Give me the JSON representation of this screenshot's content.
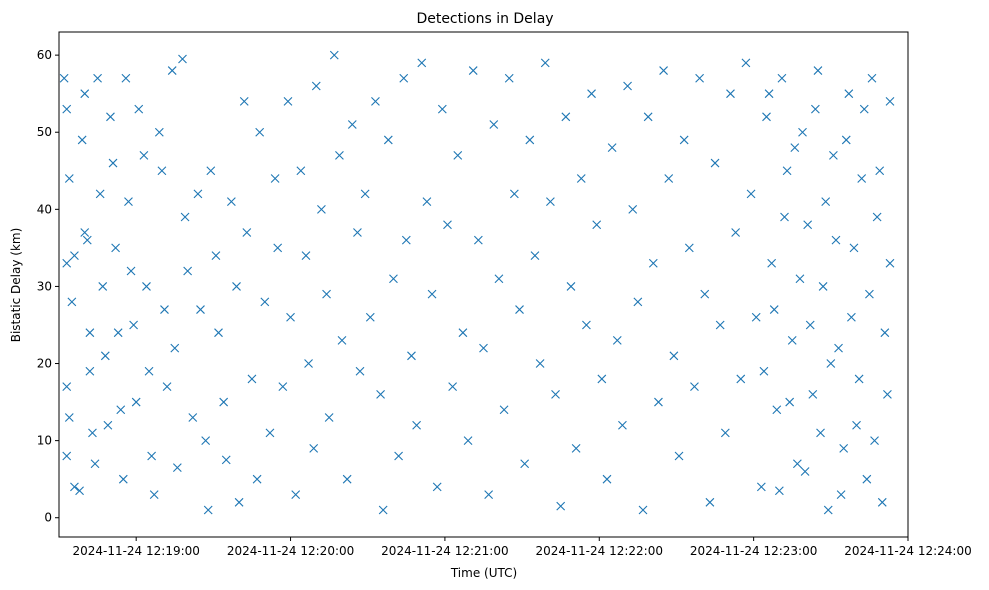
{
  "chart_data": {
    "type": "scatter",
    "title": "Detections in Delay",
    "xlabel": "Time (UTC)",
    "ylabel": "Bistatic Delay (km)",
    "marker": "x",
    "color": "#1f77b4",
    "grid": false,
    "x_tick_labels": [
      "2024-11-24 12:19:00",
      "2024-11-24 12:20:00",
      "2024-11-24 12:21:00",
      "2024-11-24 12:22:00",
      "2024-11-24 12:23:00",
      "2024-11-24 12:24:00"
    ],
    "y_ticks": [
      0,
      10,
      20,
      30,
      40,
      50,
      60
    ],
    "xlim": [
      "2024-11-24 12:18:30",
      "2024-11-24 12:24:00"
    ],
    "ylim": [
      -2.5,
      63
    ],
    "series": [
      {
        "points": [
          [
            "2024-11-24 12:18:32",
            57.0
          ],
          [
            "2024-11-24 12:18:33",
            53.0
          ],
          [
            "2024-11-24 12:18:34",
            44.0
          ],
          [
            "2024-11-24 12:18:36",
            34.0
          ],
          [
            "2024-11-24 12:18:33",
            33.0
          ],
          [
            "2024-11-24 12:18:35",
            28.0
          ],
          [
            "2024-11-24 12:18:33",
            17.0
          ],
          [
            "2024-11-24 12:18:34",
            13.0
          ],
          [
            "2024-11-24 12:18:33",
            8.0
          ],
          [
            "2024-11-24 12:18:36",
            4.0
          ],
          [
            "2024-11-24 12:18:38",
            3.5
          ],
          [
            "2024-11-24 12:18:39",
            49.0
          ],
          [
            "2024-11-24 12:18:40",
            55.0
          ],
          [
            "2024-11-24 12:18:40",
            37.0
          ],
          [
            "2024-11-24 12:18:41",
            36.0
          ],
          [
            "2024-11-24 12:18:42",
            24.0
          ],
          [
            "2024-11-24 12:18:42",
            19.0
          ],
          [
            "2024-11-24 12:18:43",
            11.0
          ],
          [
            "2024-11-24 12:18:44",
            7.0
          ],
          [
            "2024-11-24 12:18:45",
            57.0
          ],
          [
            "2024-11-24 12:18:46",
            42.0
          ],
          [
            "2024-11-24 12:18:47",
            30.0
          ],
          [
            "2024-11-24 12:18:48",
            21.0
          ],
          [
            "2024-11-24 12:18:49",
            12.0
          ],
          [
            "2024-11-24 12:18:50",
            52.0
          ],
          [
            "2024-11-24 12:18:51",
            46.0
          ],
          [
            "2024-11-24 12:18:52",
            35.0
          ],
          [
            "2024-11-24 12:18:53",
            24.0
          ],
          [
            "2024-11-24 12:18:54",
            14.0
          ],
          [
            "2024-11-24 12:18:55",
            5.0
          ],
          [
            "2024-11-24 12:18:56",
            57.0
          ],
          [
            "2024-11-24 12:18:57",
            41.0
          ],
          [
            "2024-11-24 12:18:58",
            32.0
          ],
          [
            "2024-11-24 12:18:59",
            25.0
          ],
          [
            "2024-11-24 12:19:00",
            15.0
          ],
          [
            "2024-11-24 12:19:01",
            53.0
          ],
          [
            "2024-11-24 12:19:03",
            47.0
          ],
          [
            "2024-11-24 12:19:04",
            30.0
          ],
          [
            "2024-11-24 12:19:05",
            19.0
          ],
          [
            "2024-11-24 12:19:06",
            8.0
          ],
          [
            "2024-11-24 12:19:07",
            3.0
          ],
          [
            "2024-11-24 12:19:09",
            50.0
          ],
          [
            "2024-11-24 12:19:10",
            45.0
          ],
          [
            "2024-11-24 12:19:11",
            27.0
          ],
          [
            "2024-11-24 12:19:12",
            17.0
          ],
          [
            "2024-11-24 12:19:14",
            58.0
          ],
          [
            "2024-11-24 12:19:15",
            22.0
          ],
          [
            "2024-11-24 12:19:16",
            6.5
          ],
          [
            "2024-11-24 12:19:18",
            59.5
          ],
          [
            "2024-11-24 12:19:19",
            39.0
          ],
          [
            "2024-11-24 12:19:20",
            32.0
          ],
          [
            "2024-11-24 12:19:22",
            13.0
          ],
          [
            "2024-11-24 12:19:24",
            42.0
          ],
          [
            "2024-11-24 12:19:25",
            27.0
          ],
          [
            "2024-11-24 12:19:27",
            10.0
          ],
          [
            "2024-11-24 12:19:28",
            1.0
          ],
          [
            "2024-11-24 12:19:29",
            45.0
          ],
          [
            "2024-11-24 12:19:31",
            34.0
          ],
          [
            "2024-11-24 12:19:32",
            24.0
          ],
          [
            "2024-11-24 12:19:34",
            15.0
          ],
          [
            "2024-11-24 12:19:35",
            7.5
          ],
          [
            "2024-11-24 12:19:37",
            41.0
          ],
          [
            "2024-11-24 12:19:39",
            30.0
          ],
          [
            "2024-11-24 12:19:40",
            2.0
          ],
          [
            "2024-11-24 12:19:42",
            54.0
          ],
          [
            "2024-11-24 12:19:43",
            37.0
          ],
          [
            "2024-11-24 12:19:45",
            18.0
          ],
          [
            "2024-11-24 12:19:47",
            5.0
          ],
          [
            "2024-11-24 12:19:48",
            50.0
          ],
          [
            "2024-11-24 12:19:50",
            28.0
          ],
          [
            "2024-11-24 12:19:52",
            11.0
          ],
          [
            "2024-11-24 12:19:54",
            44.0
          ],
          [
            "2024-11-24 12:19:55",
            35.0
          ],
          [
            "2024-11-24 12:19:57",
            17.0
          ],
          [
            "2024-11-24 12:19:59",
            54.0
          ],
          [
            "2024-11-24 12:20:00",
            26.0
          ],
          [
            "2024-11-24 12:20:02",
            3.0
          ],
          [
            "2024-11-24 12:20:04",
            45.0
          ],
          [
            "2024-11-24 12:20:06",
            34.0
          ],
          [
            "2024-11-24 12:20:07",
            20.0
          ],
          [
            "2024-11-24 12:20:09",
            9.0
          ],
          [
            "2024-11-24 12:20:10",
            56.0
          ],
          [
            "2024-11-24 12:20:12",
            40.0
          ],
          [
            "2024-11-24 12:20:14",
            29.0
          ],
          [
            "2024-11-24 12:20:15",
            13.0
          ],
          [
            "2024-11-24 12:20:17",
            60.0
          ],
          [
            "2024-11-24 12:20:19",
            47.0
          ],
          [
            "2024-11-24 12:20:20",
            23.0
          ],
          [
            "2024-11-24 12:20:22",
            5.0
          ],
          [
            "2024-11-24 12:20:24",
            51.0
          ],
          [
            "2024-11-24 12:20:26",
            37.0
          ],
          [
            "2024-11-24 12:20:27",
            19.0
          ],
          [
            "2024-11-24 12:20:29",
            42.0
          ],
          [
            "2024-11-24 12:20:31",
            26.0
          ],
          [
            "2024-11-24 12:20:33",
            54.0
          ],
          [
            "2024-11-24 12:20:35",
            16.0
          ],
          [
            "2024-11-24 12:20:36",
            1.0
          ],
          [
            "2024-11-24 12:20:38",
            49.0
          ],
          [
            "2024-11-24 12:20:40",
            31.0
          ],
          [
            "2024-11-24 12:20:42",
            8.0
          ],
          [
            "2024-11-24 12:20:44",
            57.0
          ],
          [
            "2024-11-24 12:20:45",
            36.0
          ],
          [
            "2024-11-24 12:20:47",
            21.0
          ],
          [
            "2024-11-24 12:20:49",
            12.0
          ],
          [
            "2024-11-24 12:20:51",
            59.0
          ],
          [
            "2024-11-24 12:20:53",
            41.0
          ],
          [
            "2024-11-24 12:20:55",
            29.0
          ],
          [
            "2024-11-24 12:20:57",
            4.0
          ],
          [
            "2024-11-24 12:20:59",
            53.0
          ],
          [
            "2024-11-24 12:21:01",
            38.0
          ],
          [
            "2024-11-24 12:21:03",
            17.0
          ],
          [
            "2024-11-24 12:21:05",
            47.0
          ],
          [
            "2024-11-24 12:21:07",
            24.0
          ],
          [
            "2024-11-24 12:21:09",
            10.0
          ],
          [
            "2024-11-24 12:21:11",
            58.0
          ],
          [
            "2024-11-24 12:21:13",
            36.0
          ],
          [
            "2024-11-24 12:21:15",
            22.0
          ],
          [
            "2024-11-24 12:21:17",
            3.0
          ],
          [
            "2024-11-24 12:21:19",
            51.0
          ],
          [
            "2024-11-24 12:21:21",
            31.0
          ],
          [
            "2024-11-24 12:21:23",
            14.0
          ],
          [
            "2024-11-24 12:21:25",
            57.0
          ],
          [
            "2024-11-24 12:21:27",
            42.0
          ],
          [
            "2024-11-24 12:21:29",
            27.0
          ],
          [
            "2024-11-24 12:21:31",
            7.0
          ],
          [
            "2024-11-24 12:21:33",
            49.0
          ],
          [
            "2024-11-24 12:21:35",
            34.0
          ],
          [
            "2024-11-24 12:21:37",
            20.0
          ],
          [
            "2024-11-24 12:21:39",
            59.0
          ],
          [
            "2024-11-24 12:21:41",
            41.0
          ],
          [
            "2024-11-24 12:21:43",
            16.0
          ],
          [
            "2024-11-24 12:21:45",
            1.5
          ],
          [
            "2024-11-24 12:21:47",
            52.0
          ],
          [
            "2024-11-24 12:21:49",
            30.0
          ],
          [
            "2024-11-24 12:21:51",
            9.0
          ],
          [
            "2024-11-24 12:21:53",
            44.0
          ],
          [
            "2024-11-24 12:21:55",
            25.0
          ],
          [
            "2024-11-24 12:21:57",
            55.0
          ],
          [
            "2024-11-24 12:21:59",
            38.0
          ],
          [
            "2024-11-24 12:22:01",
            18.0
          ],
          [
            "2024-11-24 12:22:03",
            5.0
          ],
          [
            "2024-11-24 12:22:05",
            48.0
          ],
          [
            "2024-11-24 12:22:07",
            23.0
          ],
          [
            "2024-11-24 12:22:09",
            12.0
          ],
          [
            "2024-11-24 12:22:11",
            56.0
          ],
          [
            "2024-11-24 12:22:13",
            40.0
          ],
          [
            "2024-11-24 12:22:15",
            28.0
          ],
          [
            "2024-11-24 12:22:17",
            1.0
          ],
          [
            "2024-11-24 12:22:19",
            52.0
          ],
          [
            "2024-11-24 12:22:21",
            33.0
          ],
          [
            "2024-11-24 12:22:23",
            15.0
          ],
          [
            "2024-11-24 12:22:25",
            58.0
          ],
          [
            "2024-11-24 12:22:27",
            44.0
          ],
          [
            "2024-11-24 12:22:29",
            21.0
          ],
          [
            "2024-11-24 12:22:31",
            8.0
          ],
          [
            "2024-11-24 12:22:33",
            49.0
          ],
          [
            "2024-11-24 12:22:35",
            35.0
          ],
          [
            "2024-11-24 12:22:37",
            17.0
          ],
          [
            "2024-11-24 12:22:39",
            57.0
          ],
          [
            "2024-11-24 12:22:41",
            29.0
          ],
          [
            "2024-11-24 12:22:43",
            2.0
          ],
          [
            "2024-11-24 12:22:45",
            46.0
          ],
          [
            "2024-11-24 12:22:47",
            25.0
          ],
          [
            "2024-11-24 12:22:49",
            11.0
          ],
          [
            "2024-11-24 12:22:51",
            55.0
          ],
          [
            "2024-11-24 12:22:53",
            37.0
          ],
          [
            "2024-11-24 12:22:55",
            18.0
          ],
          [
            "2024-11-24 12:22:57",
            59.0
          ],
          [
            "2024-11-24 12:22:59",
            42.0
          ],
          [
            "2024-11-24 12:23:01",
            26.0
          ],
          [
            "2024-11-24 12:23:03",
            4.0
          ],
          [
            "2024-11-24 12:23:05",
            52.0
          ],
          [
            "2024-11-24 12:23:07",
            33.0
          ],
          [
            "2024-11-24 12:23:09",
            14.0
          ],
          [
            "2024-11-24 12:23:11",
            57.0
          ],
          [
            "2024-11-24 12:23:13",
            45.0
          ],
          [
            "2024-11-24 12:23:15",
            23.0
          ],
          [
            "2024-11-24 12:23:17",
            7.0
          ],
          [
            "2024-11-24 12:23:19",
            50.0
          ],
          [
            "2024-11-24 12:23:21",
            38.0
          ],
          [
            "2024-11-24 12:23:23",
            16.0
          ],
          [
            "2024-11-24 12:23:25",
            58.0
          ],
          [
            "2024-11-24 12:23:27",
            30.0
          ],
          [
            "2024-11-24 12:23:29",
            1.0
          ],
          [
            "2024-11-24 12:23:31",
            47.0
          ],
          [
            "2024-11-24 12:23:33",
            22.0
          ],
          [
            "2024-11-24 12:23:35",
            9.0
          ],
          [
            "2024-11-24 12:23:37",
            55.0
          ],
          [
            "2024-11-24 12:23:39",
            35.0
          ],
          [
            "2024-11-24 12:23:41",
            18.0
          ],
          [
            "2024-11-24 12:23:43",
            53.0
          ],
          [
            "2024-11-24 12:23:45",
            29.0
          ],
          [
            "2024-11-24 12:23:47",
            10.0
          ],
          [
            "2024-11-24 12:23:49",
            45.0
          ],
          [
            "2024-11-24 12:23:51",
            24.0
          ],
          [
            "2024-11-24 12:23:53",
            54.0
          ],
          [
            "2024-11-24 12:23:53",
            33.0
          ],
          [
            "2024-11-24 12:23:52",
            16.0
          ],
          [
            "2024-11-24 12:23:50",
            2.0
          ],
          [
            "2024-11-24 12:23:48",
            39.0
          ],
          [
            "2024-11-24 12:23:46",
            57.0
          ],
          [
            "2024-11-24 12:23:44",
            5.0
          ],
          [
            "2024-11-24 12:23:42",
            44.0
          ],
          [
            "2024-11-24 12:23:40",
            12.0
          ],
          [
            "2024-11-24 12:23:38",
            26.0
          ],
          [
            "2024-11-24 12:23:36",
            49.0
          ],
          [
            "2024-11-24 12:23:34",
            3.0
          ],
          [
            "2024-11-24 12:23:32",
            36.0
          ],
          [
            "2024-11-24 12:23:30",
            20.0
          ],
          [
            "2024-11-24 12:23:28",
            41.0
          ],
          [
            "2024-11-24 12:23:26",
            11.0
          ],
          [
            "2024-11-24 12:23:24",
            53.0
          ],
          [
            "2024-11-24 12:23:22",
            25.0
          ],
          [
            "2024-11-24 12:23:20",
            6.0
          ],
          [
            "2024-11-24 12:23:18",
            31.0
          ],
          [
            "2024-11-24 12:23:16",
            48.0
          ],
          [
            "2024-11-24 12:23:14",
            15.0
          ],
          [
            "2024-11-24 12:23:12",
            39.0
          ],
          [
            "2024-11-24 12:23:10",
            3.5
          ],
          [
            "2024-11-24 12:23:08",
            27.0
          ],
          [
            "2024-11-24 12:23:06",
            55.0
          ],
          [
            "2024-11-24 12:23:04",
            19.0
          ]
        ]
      }
    ]
  }
}
